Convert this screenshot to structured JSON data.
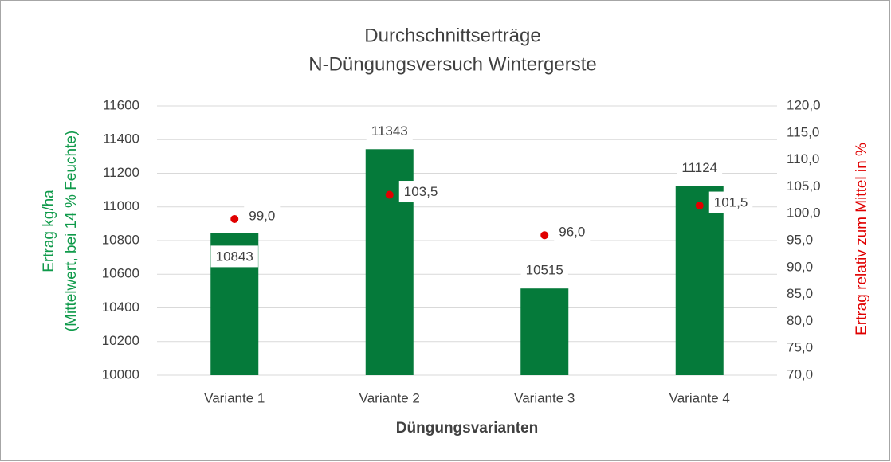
{
  "chart_data": {
    "type": "bar",
    "title": "Durchschnittserträge",
    "subtitle": "N-Düngungsversuch  Wintergerste",
    "ylabel": [
      "Ertrag kg/ha",
      "(Mittelwert, bei 14  % Feuchte)"
    ],
    "y2label": "Ertrag relativ  zum Mittel in %",
    "xlabel": "Düngungsvarianten",
    "categories": [
      "Variante 1",
      "Variante 2",
      "Variante 3",
      "Variante 4"
    ],
    "series": [
      {
        "type": "bar",
        "color": "#057a3a",
        "values": [
          10843,
          11343,
          10515,
          11124
        ]
      },
      {
        "type": "scatter",
        "axis": "y2",
        "color": "#e00000",
        "values": [
          99.0,
          103.5,
          96.0,
          101.5
        ],
        "value_labels": [
          "99,0",
          "103,5",
          "96,0",
          "101,5"
        ]
      }
    ],
    "ylim": [
      10000,
      11600
    ],
    "yticks": [
      10000,
      10200,
      10400,
      10600,
      10800,
      11000,
      11200,
      11400,
      11600
    ],
    "y2lim": [
      70,
      120
    ],
    "y2ticks": [
      {
        "value": 70,
        "label": "70,0"
      },
      {
        "value": 75,
        "label": "75,0"
      },
      {
        "value": 80,
        "label": "80,0"
      },
      {
        "value": 85,
        "label": "85,0"
      },
      {
        "value": 90,
        "label": "90,0"
      },
      {
        "value": 95,
        "label": "95,0"
      },
      {
        "value": 100,
        "label": "100,0"
      },
      {
        "value": 105,
        "label": "105,0"
      },
      {
        "value": 110,
        "label": "110,0"
      },
      {
        "value": 115,
        "label": "115,0"
      },
      {
        "value": 120,
        "label": "120,0"
      }
    ],
    "grid": true
  }
}
